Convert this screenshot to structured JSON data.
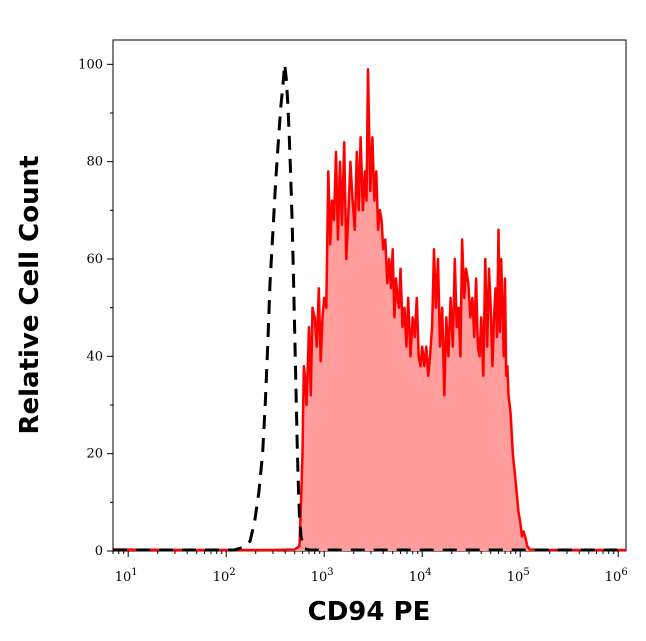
{
  "chart_data": {
    "type": "area",
    "title": "",
    "xlabel": "CD94 PE",
    "ylabel": "Relative Cell Count",
    "x_scale": "log",
    "xlim": [
      7,
      1200000
    ],
    "ylim": [
      0,
      105
    ],
    "x_ticks": [
      {
        "base": "10",
        "exp": "1",
        "value": 10
      },
      {
        "base": "10",
        "exp": "2",
        "value": 100
      },
      {
        "base": "10",
        "exp": "3",
        "value": 1000
      },
      {
        "base": "10",
        "exp": "4",
        "value": 10000
      },
      {
        "base": "10",
        "exp": "5",
        "value": 100000
      },
      {
        "base": "10",
        "exp": "6",
        "value": 1000000
      }
    ],
    "y_ticks": [
      {
        "label": "0",
        "value": 0
      },
      {
        "label": "20",
        "value": 20
      },
      {
        "label": "40",
        "value": 40
      },
      {
        "label": "60",
        "value": 60
      },
      {
        "label": "80",
        "value": 80
      },
      {
        "label": "100",
        "value": 100
      }
    ],
    "grid": false,
    "series": [
      {
        "style": "filled-solid",
        "color": "#ff0000",
        "fill": "#ff9c9c",
        "points": [
          [
            7,
            0.3
          ],
          [
            50,
            0.2
          ],
          [
            300,
            0.2
          ],
          [
            500,
            0.3
          ],
          [
            560,
            1
          ],
          [
            580,
            10
          ],
          [
            600,
            20
          ],
          [
            610,
            30
          ],
          [
            620,
            38
          ],
          [
            640,
            35
          ],
          [
            660,
            30
          ],
          [
            680,
            38
          ],
          [
            700,
            46
          ],
          [
            730,
            32
          ],
          [
            760,
            50
          ],
          [
            800,
            48
          ],
          [
            840,
            42
          ],
          [
            880,
            54
          ],
          [
            920,
            39
          ],
          [
            960,
            48
          ],
          [
            1000,
            52
          ],
          [
            1050,
            50
          ],
          [
            1100,
            78
          ],
          [
            1150,
            63
          ],
          [
            1200,
            72
          ],
          [
            1260,
            68
          ],
          [
            1320,
            82
          ],
          [
            1380,
            64
          ],
          [
            1450,
            80
          ],
          [
            1520,
            67
          ],
          [
            1600,
            84
          ],
          [
            1680,
            60
          ],
          [
            1760,
            69
          ],
          [
            1850,
            80
          ],
          [
            1950,
            72
          ],
          [
            2050,
            66
          ],
          [
            2150,
            82
          ],
          [
            2250,
            70
          ],
          [
            2350,
            85
          ],
          [
            2480,
            70
          ],
          [
            2600,
            78
          ],
          [
            2700,
            72
          ],
          [
            2800,
            99
          ],
          [
            2950,
            74
          ],
          [
            3100,
            85
          ],
          [
            3250,
            72
          ],
          [
            3400,
            78
          ],
          [
            3550,
            66
          ],
          [
            3700,
            70
          ],
          [
            3850,
            68
          ],
          [
            4000,
            62
          ],
          [
            4200,
            64
          ],
          [
            4400,
            55
          ],
          [
            4600,
            60
          ],
          [
            4800,
            54
          ],
          [
            5000,
            62
          ],
          [
            5200,
            48
          ],
          [
            5400,
            56
          ],
          [
            5600,
            52
          ],
          [
            5800,
            50
          ],
          [
            6000,
            58
          ],
          [
            6300,
            46
          ],
          [
            6600,
            50
          ],
          [
            6900,
            42
          ],
          [
            7200,
            52
          ],
          [
            7600,
            40
          ],
          [
            8000,
            48
          ],
          [
            8400,
            44
          ],
          [
            8800,
            52
          ],
          [
            9200,
            40
          ],
          [
            9600,
            38
          ],
          [
            10000,
            42
          ],
          [
            10500,
            38
          ],
          [
            11000,
            42
          ],
          [
            11500,
            36
          ],
          [
            12000,
            40
          ],
          [
            12600,
            46
          ],
          [
            13200,
            62
          ],
          [
            13800,
            50
          ],
          [
            14500,
            60
          ],
          [
            15200,
            42
          ],
          [
            16000,
            50
          ],
          [
            16800,
            32
          ],
          [
            17600,
            48
          ],
          [
            18500,
            40
          ],
          [
            19500,
            52
          ],
          [
            20500,
            42
          ],
          [
            21500,
            60
          ],
          [
            22500,
            46
          ],
          [
            23500,
            50
          ],
          [
            24500,
            40
          ],
          [
            25500,
            64
          ],
          [
            26800,
            52
          ],
          [
            28000,
            58
          ],
          [
            29500,
            55
          ],
          [
            31000,
            48
          ],
          [
            32500,
            52
          ],
          [
            34000,
            44
          ],
          [
            35500,
            56
          ],
          [
            37000,
            42
          ],
          [
            38500,
            40
          ],
          [
            40000,
            48
          ],
          [
            42000,
            36
          ],
          [
            44000,
            60
          ],
          [
            46000,
            42
          ],
          [
            48000,
            58
          ],
          [
            50000,
            50
          ],
          [
            52000,
            38
          ],
          [
            54000,
            48
          ],
          [
            56000,
            54
          ],
          [
            58000,
            44
          ],
          [
            60000,
            66
          ],
          [
            62000,
            45
          ],
          [
            64000,
            60
          ],
          [
            66000,
            50
          ],
          [
            68000,
            40
          ],
          [
            70000,
            56
          ],
          [
            72000,
            36
          ],
          [
            74000,
            38
          ],
          [
            76000,
            32
          ],
          [
            78000,
            30
          ],
          [
            80000,
            28
          ],
          [
            84000,
            20
          ],
          [
            88000,
            16
          ],
          [
            92000,
            12
          ],
          [
            96000,
            8
          ],
          [
            100000,
            6
          ],
          [
            104000,
            3
          ],
          [
            108000,
            4
          ],
          [
            112000,
            3
          ],
          [
            118000,
            1
          ],
          [
            125000,
            0.3
          ],
          [
            200000,
            0.2
          ],
          [
            1200000,
            0.2
          ]
        ]
      },
      {
        "style": "dashed",
        "color": "#000000",
        "points": [
          [
            7,
            0.2
          ],
          [
            120,
            0.2
          ],
          [
            150,
            0.8
          ],
          [
            175,
            2
          ],
          [
            195,
            6
          ],
          [
            215,
            12
          ],
          [
            235,
            20
          ],
          [
            250,
            30
          ],
          [
            265,
            42
          ],
          [
            280,
            55
          ],
          [
            300,
            66
          ],
          [
            320,
            76
          ],
          [
            340,
            84
          ],
          [
            360,
            91
          ],
          [
            380,
            96
          ],
          [
            395,
            100
          ],
          [
            410,
            97
          ],
          [
            425,
            92
          ],
          [
            440,
            85
          ],
          [
            455,
            77
          ],
          [
            470,
            68
          ],
          [
            485,
            57
          ],
          [
            500,
            45
          ],
          [
            515,
            33
          ],
          [
            530,
            22
          ],
          [
            545,
            13
          ],
          [
            560,
            7
          ],
          [
            580,
            3
          ],
          [
            600,
            1.5
          ],
          [
            630,
            0.5
          ],
          [
            700,
            0.2
          ],
          [
            1200000,
            0.2
          ]
        ]
      }
    ]
  }
}
